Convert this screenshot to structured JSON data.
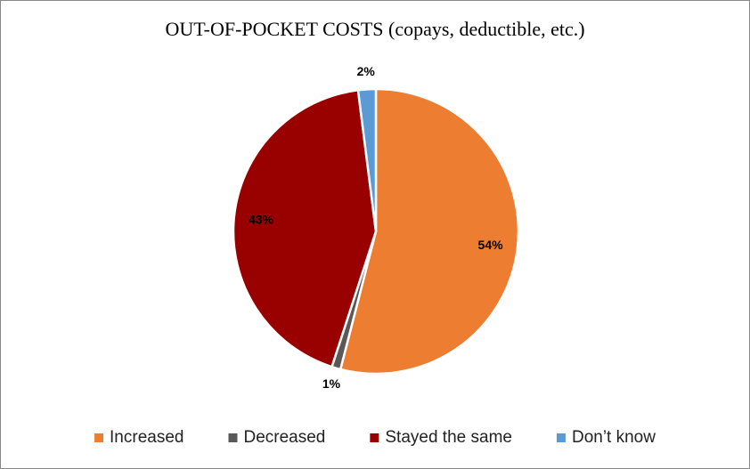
{
  "chart_data": {
    "type": "pie",
    "title": "OUT-OF-POCKET COSTS (copays, deductible, etc.)",
    "categories": [
      "Increased",
      "Decreased",
      "Stayed the same",
      "Don’t know"
    ],
    "values": [
      54,
      1,
      43,
      2
    ],
    "value_labels": [
      "54%",
      "1%",
      "43%",
      "2%"
    ],
    "colors": [
      "#ed7d31",
      "#595959",
      "#990000",
      "#5b9bd5"
    ]
  }
}
